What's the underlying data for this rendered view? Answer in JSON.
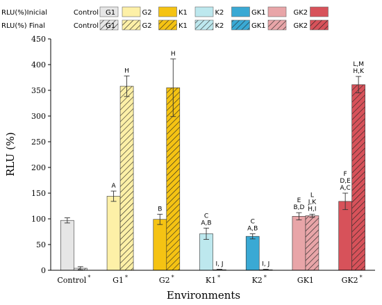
{
  "chart_data": {
    "type": "bar",
    "title": "",
    "xlabel": "Environments",
    "ylabel": "RLU (%)",
    "ylim": [
      0,
      450
    ],
    "yticks": [
      0,
      50,
      100,
      150,
      200,
      250,
      300,
      350,
      400,
      450
    ],
    "grid": false,
    "legend_placement": "top",
    "categories": [
      "Control",
      "G1",
      "G2",
      "K1",
      "K2",
      "GK1",
      "GK2"
    ],
    "category_markers": [
      "*",
      "*",
      "*",
      "*",
      "*",
      "",
      "*"
    ],
    "series": [
      {
        "name": "RLU(%)Inicial",
        "pattern": "solid",
        "values": [
          97,
          144,
          99,
          71,
          66,
          105,
          134
        ],
        "errors": [
          5,
          10,
          10,
          11,
          5,
          7,
          16
        ],
        "labels": [
          [
            ""
          ],
          [
            "A"
          ],
          [
            "B"
          ],
          [
            "C",
            "A,B"
          ],
          [
            "C",
            "A,B"
          ],
          [
            "E",
            "B,D"
          ],
          [
            "F",
            "D,E",
            "A,C"
          ]
        ]
      },
      {
        "name": "RLU(%) Final",
        "pattern": "hatched",
        "values": [
          4,
          358,
          355,
          1,
          1,
          106,
          361
        ],
        "errors": [
          3,
          20,
          56,
          1,
          1,
          3,
          16
        ],
        "labels": [
          [
            ""
          ],
          [
            "H"
          ],
          [
            "H"
          ],
          [
            "I, J"
          ],
          [
            "I, J"
          ],
          [
            "L",
            "J,K",
            "H,I"
          ],
          [
            "L,M",
            "H,K"
          ]
        ]
      }
    ],
    "colors": {
      "Control": "#e6e6e6",
      "G1": "#fdf0a7",
      "G2": "#f5c313",
      "K1": "#bde8ee",
      "K2": "#3aa9d4",
      "GK1": "#e8a5a8",
      "GK2": "#d7525a"
    },
    "legend": {
      "row_labels": [
        "RLU(%)Inicial",
        "RLU(%) Final"
      ],
      "entries": [
        "Control",
        "G1",
        "G2",
        "K1",
        "K2",
        "GK1",
        "GK2"
      ]
    }
  }
}
